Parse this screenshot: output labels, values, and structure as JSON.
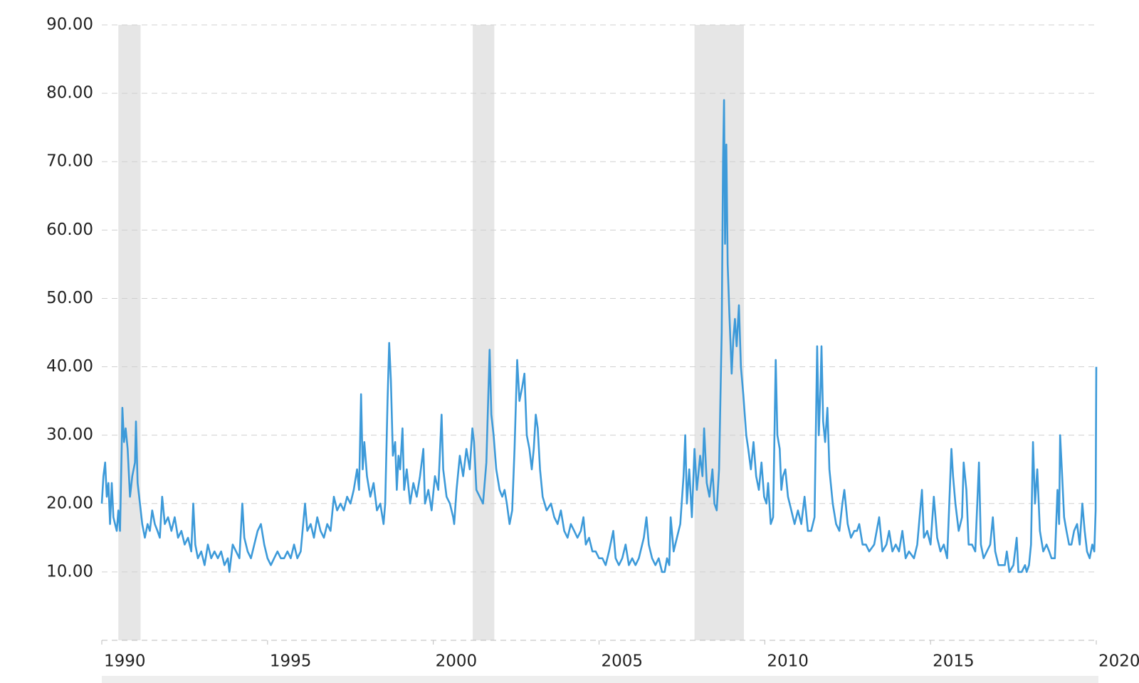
{
  "chart_data": {
    "type": "line",
    "xlim": [
      1990,
      2020
    ],
    "xticks": [
      1990,
      1995,
      2000,
      2005,
      2010,
      2015,
      2020
    ],
    "ylim": [
      0,
      90
    ],
    "yticks": [
      {
        "value": 10,
        "label": "10.00"
      },
      {
        "value": 20,
        "label": "20.00"
      },
      {
        "value": 30,
        "label": "30.00"
      },
      {
        "value": 40,
        "label": "40.00"
      },
      {
        "value": 50,
        "label": "50.00"
      },
      {
        "value": 60,
        "label": "60.00"
      },
      {
        "value": 70,
        "label": "70.00"
      },
      {
        "value": 80,
        "label": "80.00"
      },
      {
        "value": 90,
        "label": "90.00"
      }
    ],
    "grid": true,
    "recessions": [
      {
        "start": 1990.5,
        "end": 1991.17
      },
      {
        "start": 2001.19,
        "end": 2001.84
      },
      {
        "start": 2007.88,
        "end": 2009.37
      }
    ],
    "recession_color": "#e6e6e6",
    "x": [
      1990.0,
      1990.05,
      1990.1,
      1990.15,
      1990.2,
      1990.25,
      1990.3,
      1990.35,
      1990.4,
      1990.45,
      1990.5,
      1990.55,
      1990.6,
      1990.62,
      1990.67,
      1990.72,
      1990.78,
      1990.85,
      1990.92,
      1991.0,
      1991.03,
      1991.08,
      1991.15,
      1991.22,
      1991.3,
      1991.38,
      1991.45,
      1991.52,
      1991.6,
      1991.68,
      1991.75,
      1991.82,
      1991.9,
      1992.0,
      1992.1,
      1992.2,
      1992.3,
      1992.4,
      1992.5,
      1992.6,
      1992.7,
      1992.76,
      1992.82,
      1992.9,
      1993.0,
      1993.1,
      1993.2,
      1993.3,
      1993.4,
      1993.5,
      1993.6,
      1993.7,
      1993.8,
      1993.85,
      1993.95,
      1994.05,
      1994.15,
      1994.24,
      1994.3,
      1994.4,
      1994.5,
      1994.6,
      1994.7,
      1994.8,
      1994.9,
      1995.0,
      1995.1,
      1995.2,
      1995.3,
      1995.4,
      1995.5,
      1995.6,
      1995.7,
      1995.8,
      1995.9,
      1996.0,
      1996.13,
      1996.2,
      1996.3,
      1996.4,
      1996.5,
      1996.6,
      1996.7,
      1996.8,
      1996.9,
      1997.0,
      1997.1,
      1997.2,
      1997.3,
      1997.4,
      1997.5,
      1997.6,
      1997.7,
      1997.76,
      1997.82,
      1997.87,
      1997.92,
      1998.0,
      1998.1,
      1998.2,
      1998.3,
      1998.4,
      1998.5,
      1998.55,
      1998.62,
      1998.67,
      1998.72,
      1998.78,
      1998.85,
      1998.9,
      1998.95,
      1999.0,
      1999.07,
      1999.12,
      1999.2,
      1999.3,
      1999.4,
      1999.5,
      1999.6,
      1999.7,
      1999.75,
      1999.85,
      1999.95,
      2000.05,
      2000.15,
      2000.25,
      2000.3,
      2000.4,
      2000.5,
      2000.6,
      2000.63,
      2000.7,
      2000.8,
      2000.9,
      2001.0,
      2001.1,
      2001.18,
      2001.23,
      2001.3,
      2001.4,
      2001.5,
      2001.6,
      2001.7,
      2001.75,
      2001.82,
      2001.9,
      2002.0,
      2002.08,
      2002.15,
      2002.22,
      2002.3,
      2002.38,
      2002.45,
      2002.53,
      2002.6,
      2002.68,
      2002.75,
      2002.82,
      2002.9,
      2002.97,
      2003.03,
      2003.09,
      2003.15,
      2003.22,
      2003.3,
      2003.42,
      2003.55,
      2003.65,
      2003.75,
      2003.85,
      2003.95,
      2004.05,
      2004.15,
      2004.25,
      2004.35,
      2004.45,
      2004.53,
      2004.6,
      2004.7,
      2004.8,
      2004.9,
      2005.0,
      2005.1,
      2005.2,
      2005.3,
      2005.43,
      2005.5,
      2005.6,
      2005.7,
      2005.8,
      2005.9,
      2006.0,
      2006.1,
      2006.2,
      2006.35,
      2006.43,
      2006.5,
      2006.6,
      2006.7,
      2006.8,
      2006.9,
      2006.98,
      2007.05,
      2007.12,
      2007.16,
      2007.25,
      2007.35,
      2007.45,
      2007.55,
      2007.6,
      2007.65,
      2007.72,
      2007.8,
      2007.88,
      2007.95,
      2008.05,
      2008.12,
      2008.17,
      2008.25,
      2008.33,
      2008.42,
      2008.48,
      2008.55,
      2008.62,
      2008.7,
      2008.74,
      2008.77,
      2008.8,
      2008.84,
      2008.88,
      2008.93,
      2009.0,
      2009.05,
      2009.1,
      2009.15,
      2009.22,
      2009.28,
      2009.35,
      2009.44,
      2009.5,
      2009.58,
      2009.66,
      2009.74,
      2009.82,
      2009.9,
      2009.98,
      2010.05,
      2010.1,
      2010.18,
      2010.25,
      2010.33,
      2010.38,
      2010.45,
      2010.5,
      2010.55,
      2010.62,
      2010.7,
      2010.8,
      2010.9,
      2011.0,
      2011.1,
      2011.2,
      2011.3,
      2011.4,
      2011.5,
      2011.58,
      2011.63,
      2011.68,
      2011.71,
      2011.76,
      2011.82,
      2011.89,
      2011.95,
      2012.05,
      2012.15,
      2012.25,
      2012.34,
      2012.4,
      2012.5,
      2012.6,
      2012.7,
      2012.78,
      2012.85,
      2012.95,
      2013.05,
      2013.15,
      2013.3,
      2013.45,
      2013.55,
      2013.67,
      2013.75,
      2013.85,
      2013.95,
      2014.05,
      2014.15,
      2014.25,
      2014.35,
      2014.5,
      2014.6,
      2014.74,
      2014.8,
      2014.9,
      2015.0,
      2015.1,
      2015.2,
      2015.3,
      2015.4,
      2015.5,
      2015.63,
      2015.68,
      2015.75,
      2015.85,
      2015.95,
      2016.0,
      2016.08,
      2016.15,
      2016.25,
      2016.35,
      2016.46,
      2016.52,
      2016.6,
      2016.7,
      2016.8,
      2016.88,
      2016.95,
      2017.05,
      2017.15,
      2017.24,
      2017.3,
      2017.38,
      2017.5,
      2017.6,
      2017.65,
      2017.75,
      2017.85,
      2017.9,
      2017.97,
      2018.03,
      2018.09,
      2018.15,
      2018.22,
      2018.3,
      2018.4,
      2018.5,
      2018.58,
      2018.65,
      2018.75,
      2018.83,
      2018.88,
      2018.91,
      2018.96,
      2019.03,
      2019.1,
      2019.18,
      2019.25,
      2019.33,
      2019.42,
      2019.5,
      2019.58,
      2019.65,
      2019.72,
      2019.8,
      2019.88,
      2019.94,
      2019.98,
      2020.0
    ],
    "series": [
      {
        "color": "#3d9ad9",
        "values": [
          20,
          24,
          26,
          21,
          23,
          17,
          23,
          18,
          17,
          16,
          19,
          16,
          28,
          34,
          29,
          31,
          28,
          21,
          24,
          26,
          32,
          23,
          20,
          17,
          15,
          17,
          16,
          19,
          17,
          16,
          15,
          21,
          17,
          18,
          16,
          18,
          15,
          16,
          14,
          15,
          13,
          20,
          14,
          12,
          13,
          11,
          14,
          12,
          13,
          12,
          13,
          11,
          12,
          10,
          14,
          13,
          12,
          20,
          15,
          13,
          12,
          14,
          16,
          17,
          14,
          12,
          11,
          12,
          13,
          12,
          12,
          13,
          12,
          14,
          12,
          13,
          20,
          16,
          17,
          15,
          18,
          16,
          15,
          17,
          16,
          21,
          19,
          20,
          19,
          21,
          20,
          22,
          25,
          22,
          36,
          25,
          29,
          24,
          21,
          23,
          19,
          20,
          17,
          20,
          35,
          43.5,
          38,
          27,
          29,
          22,
          27,
          25,
          31,
          22,
          25,
          20,
          23,
          21,
          24,
          28,
          20,
          22,
          19,
          24,
          22,
          33,
          25,
          21,
          20,
          18,
          17,
          22,
          27,
          24,
          28,
          25,
          31,
          29,
          22,
          21,
          20,
          26,
          42.5,
          33,
          30,
          25,
          22,
          21,
          22,
          20,
          17,
          19,
          28,
          41,
          35,
          37,
          39,
          30,
          28,
          25,
          28,
          33,
          31,
          25,
          21,
          19,
          20,
          18,
          17,
          19,
          16,
          15,
          17,
          16,
          15,
          16,
          18,
          14,
          15,
          13,
          13,
          12,
          12,
          11,
          13,
          16,
          12,
          11,
          12,
          14,
          11,
          12,
          11,
          12,
          15,
          18,
          14,
          12,
          11,
          12,
          10,
          10,
          12,
          11,
          18,
          13,
          15,
          17,
          24,
          30,
          20,
          25,
          18,
          28,
          22,
          27,
          24,
          31,
          23,
          21,
          25,
          20,
          19,
          25,
          45,
          70,
          79,
          58,
          72.5,
          55,
          48,
          39,
          44,
          47,
          43,
          49,
          40,
          36,
          30,
          28,
          25,
          29,
          24,
          22,
          26,
          21,
          20,
          23,
          17,
          18,
          41,
          30,
          28,
          22,
          24,
          25,
          21,
          19,
          17,
          19,
          17,
          21,
          16,
          16,
          18,
          43,
          30,
          37,
          43,
          32,
          29,
          34,
          25,
          20,
          17,
          16,
          20,
          22,
          17,
          15,
          16,
          16,
          17,
          14,
          14,
          13,
          14,
          18,
          13,
          14,
          16,
          13,
          14,
          13,
          16,
          12,
          13,
          12,
          14,
          22,
          15,
          16,
          14,
          21,
          15,
          13,
          14,
          12,
          28,
          24,
          20,
          16,
          18,
          26,
          22,
          14,
          14,
          13,
          26,
          14,
          12,
          13,
          14,
          18,
          13,
          11,
          11,
          11,
          13,
          10,
          11,
          15,
          10,
          10,
          11,
          10,
          11,
          14,
          29,
          20,
          25,
          16,
          13,
          14,
          13,
          12,
          12,
          22,
          17,
          30,
          25,
          18,
          16,
          14,
          14,
          16,
          17,
          14,
          20,
          16,
          13,
          12,
          14,
          13,
          19,
          40
        ]
      }
    ]
  }
}
